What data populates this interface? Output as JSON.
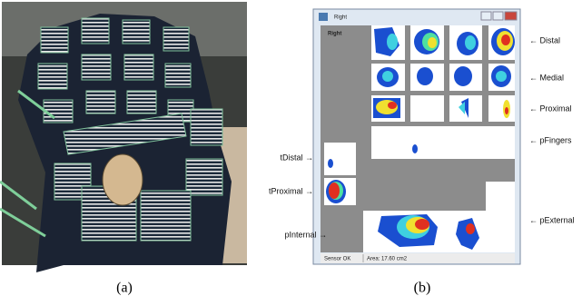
{
  "figure": {
    "captions": [
      "(a)",
      "(b)"
    ],
    "window": {
      "title": "Right",
      "panel_label": "Right",
      "status": [
        "Sensor OK",
        "Area: 17.60 cm2"
      ]
    },
    "right_labels": [
      "← Distal",
      "← Medial",
      "← Proximal",
      "← pFingers",
      "← pExternal"
    ],
    "left_labels": [
      "tDistal →",
      "tProximal →",
      "pInternal →"
    ]
  }
}
